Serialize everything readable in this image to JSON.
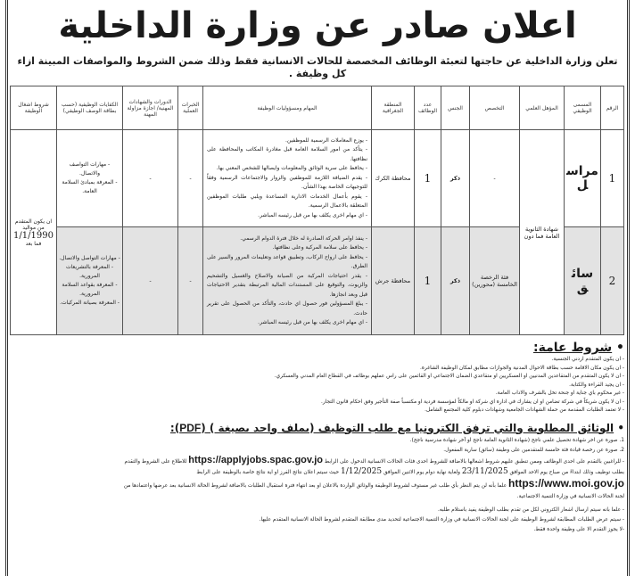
{
  "title": "اعلان صادر عن وزارة الداخلية",
  "subtitle": "تعلن وزارة الداخلية عن حاجتها لتعبئة الوظائف المخصصة للحالات الانسانية فقط وذلك ضمن الشروط والمواصفات المبينة ازاء كل وظيفة .",
  "table": {
    "headers": [
      "الرقم",
      "المسمى الوظيفي",
      "المؤهل العلمي",
      "التخصص",
      "الجنس",
      "عدد الوظائف",
      "المنطقة الجغرافية",
      "المهام ومسؤوليات الوظيفة",
      "الخبرات العملية",
      "الدورات والشهادات المهنية/ اجازة مزاولة المهنة",
      "الكفايات الوظيفية (حسب بطاقة الوصف الوظيفي)",
      "شروط اشغال الوظيفة"
    ],
    "qualification": "شهادة الثانوية العامة فما دون",
    "condition": {
      "pre": "ان يكون المتقدم من مواليد",
      "date": "1/1/1990",
      "post": "فما بعد"
    },
    "rows": [
      {
        "no": "1",
        "title": "مراسل",
        "specialty": "-",
        "gender": "ذكر",
        "count": "1",
        "region": "محافظة الكرك",
        "tasks": [
          "- يوزع المعاملات الرسمية للموظفين.",
          "- يتأكد من امور السلامة العامة قبل مغادرة المكاتب والمحافظة على نظافتها.",
          "- يحافظ على سرية الوثائق والمعلومات وايصالها للشخص المعني بها.",
          "- يقدم الضيافة اللازمة للموظفين والزوار والاجتماعات الرسمية وفقاً للتوجيهات الخاصة بهذا الشأن.",
          "- يقوم بأعمال الخدمات الادارية المساعدة ويلبي طلبات الموظفين المتعلقة بالاعمال الرسمية.",
          "- اي مهام اخرى يكلف بها من قبل رئيسه المباشر."
        ],
        "experience": "-",
        "courses": "-",
        "skills": [
          "- مهارات التواصف والاتصال.",
          "- المعرفة بمبادئ السلامة العامة."
        ]
      },
      {
        "no": "2",
        "title": "سائق",
        "specialty": "فئة الرخصة الخامسة (محورين)",
        "gender": "ذكر",
        "count": "1",
        "region": "محافظة جرش",
        "tasks": [
          "- ينفذ اوامر الحركة الصادرة له خلال فترة الدوام الرسمي.",
          "- يحافظ على سلامة المركبة وعلى نظافتها.",
          "- يحافظ على ارواح الركاب، وتطبيق قواعد وتعليمات المرور والسير على الطرق.",
          "- يقدر احتياجات المركبة من الصيانة والاصلاح والغسيل والتشحيم والزيوت، والتوقيع على المستندات المالية المرتبطة بتقدير الاحتياجات قبل وبعد انجازها.",
          "- يبلغ المسؤولين فور حصول اي حادث، والتأكد من الحصول على تقرير حادث.",
          "- اي مهام اخرى يكلف بها من قبل رئيسه المباشر."
        ],
        "experience": "-",
        "courses": "-",
        "skills": [
          "- مهارات التواصل والاتصال.",
          "- المعرفة بالتشريعات المرورية.",
          "- المعرفة بقواعد السلامة المرورية.",
          "- المعرفة بصيانة المركبات."
        ]
      }
    ]
  },
  "general": {
    "heading": "شروط عامة:",
    "items": [
      "- ان يكون المتقدم اردني الجنسية.",
      "- ان يكون مكان الاقامة حسب بطاقة الاحوال المدنية والجوازات مطابق لمكان الوظيفة الشاغرة.",
      "- ان لا يكون المتقدم من المتقاعدين المدنيين او العسكريين او متقاعدي الضمان الاجتماعي او القائمين على راس عملهم بوظائف في القطاع العام المدني والعسكري.",
      "- ان يجيد القراءة والكتابة.",
      "- غير محكوم باي جناية او جنحة تخل بالشرف والاداب العامة.",
      "- ان لا يكون شريكاً في شركة تضامن او ان يشارك في ادارة اي شركة او مالكاً لمؤسسة فردية او مكتسباً صفة التأجير وفق احكام قانون التجار.",
      "- لا تعتمد الطلبات المقدمة من حملة الشهادات الجامعية وشهادات دبلوم كلية المجتمع الشامل."
    ]
  },
  "docs": {
    "heading_pre": "الوثائق المطلوبة والتي ترفق الكترونيا مع طلب التوظيف (بملف واحد بصيغة ) (",
    "heading_pdf": "PDF",
    "heading_post": "):",
    "items": [
      "1. صورة عن اخر شهادة تحصيل علمي ناجح (شهادة الثانوية العامة ناجح او آخر شهادة مدرسية ناجح).",
      "2. صورة عن رخصة قيادة فئة خامسة للمتقدمين على وظيفة (سائق) سارية المفعول."
    ],
    "apply1_pre": "- للراغبين بالتقدم على احدى الوظائف وممن تنطبق عليهم شروط اشغالها بالاضافة للشروط احدى فئات الحالات الانسانية الدخول على الرابط",
    "url1": "https://applyjobs.spac.gov.jo",
    "apply1_post": "للاطلاع على الشروط والتقدم",
    "apply2_pre": "بطلب توظيف وذلك ابتداءً من صباح يوم الاحد الموافق",
    "date1": "23/11/2025",
    "apply2_mid": "ولغاية نهاية دوام يوم الاثنين الموافق",
    "date2": "1/12/2025",
    "apply2_post": "حيث سيتم اعلان نتائج الفرز او اية نتائج خاصة بالوظيفة على الرابط",
    "url2": "https://www.moi.gov.jo",
    "apply3": "علما بأنه لن يتم النظر بأي طلب غير مستوف لشروط الوظيفة والوثائق الواردة بالاعلان او بعد انتهاء فترة استقبال الطلبات بالاضافة لشروط الحالة الانسانية بعد عرضها واعتمادها من",
    "apply4": "لجنة الحالات الانسانية في وزارة التنمية الاجتماعية.",
    "notes": [
      "- علما بانه سيتم ارسال اشعار الكتروني لكل من تقدم بطلب الوظيفة يفيد باستلام طلبه.",
      "- سيتم عرض الطلبات المطابقة لشروط الوظيفة على لجنة الحالات الانسانية في وزارة التنمية الاجتماعية لتحديد مدى مطابقة المتقدم لشروط الحالة الانسانية المتقدم عليها.",
      "-لا يجوز التقدم الا على وظيفة واحدة فقط."
    ]
  }
}
